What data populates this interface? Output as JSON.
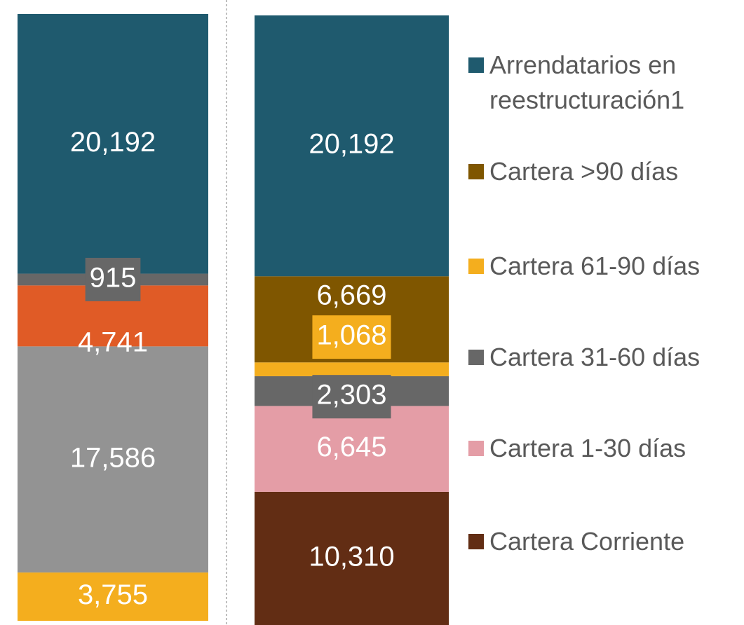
{
  "chart_data": [
    {
      "type": "stacked_bar",
      "values": [
        3755,
        17586,
        4741,
        915,
        20192
      ],
      "value_labels": [
        "3,755",
        "17,586",
        "4,741",
        "915",
        "20,192"
      ],
      "colors": [
        "#f4ae1e",
        "#939393",
        "#e05b26",
        "#676767",
        "#1f5a6e"
      ]
    },
    {
      "type": "stacked_bar",
      "values": [
        10310,
        6645,
        2303,
        1068,
        6669,
        20192
      ],
      "value_labels": [
        "10,310",
        "6,645",
        "2,303",
        "1,068",
        "6,669",
        "20,192"
      ],
      "colors": [
        "#622d14",
        "#e49da6",
        "#676767",
        "#f4ae1e",
        "#7f5600",
        "#1f5a6e"
      ],
      "legend": [
        "Cartera Corriente",
        "Cartera 1-30 días",
        "Cartera 31-60 días",
        "Cartera 61-90 días",
        "Cartera >90 días",
        "Arrendatarios en reestructuración1"
      ]
    }
  ]
}
